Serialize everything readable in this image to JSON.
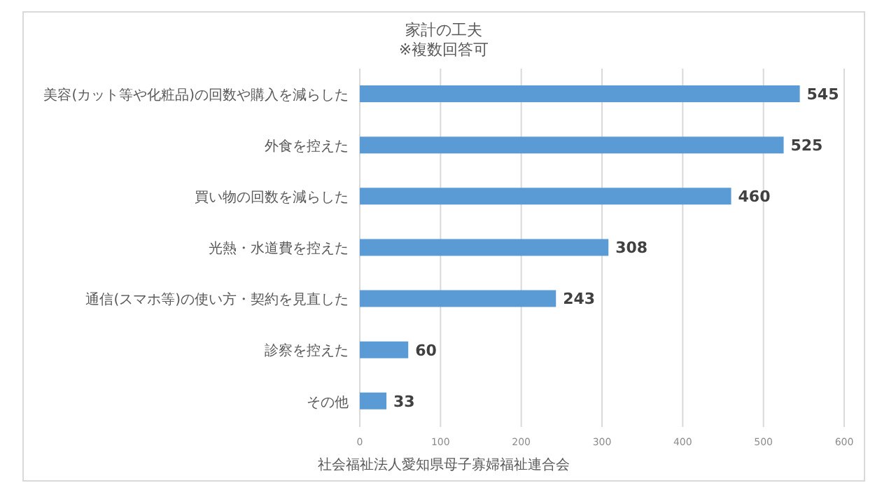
{
  "chart_data": {
    "type": "bar",
    "orientation": "horizontal",
    "title": "家計の工夫",
    "subtitle": "※複数回答可",
    "categories": [
      "美容(カット等や化粧品)の回数や購入を減らした",
      "外食を控えた",
      "買い物の回数を減らした",
      "光熱・水道費を控えた",
      "通信(スマホ等)の使い方・契約を見直した",
      "診察を控えた",
      "その他"
    ],
    "values": [
      545,
      525,
      460,
      308,
      243,
      60,
      33
    ],
    "color": "#5b9bd5",
    "xlim": [
      0,
      600
    ],
    "xticks": [
      0,
      100,
      200,
      300,
      400,
      500,
      600
    ],
    "grid": "x",
    "data_labels": true,
    "annotations": [
      "社会福祉法人愛知県母子寡婦福祉連合会"
    ]
  }
}
